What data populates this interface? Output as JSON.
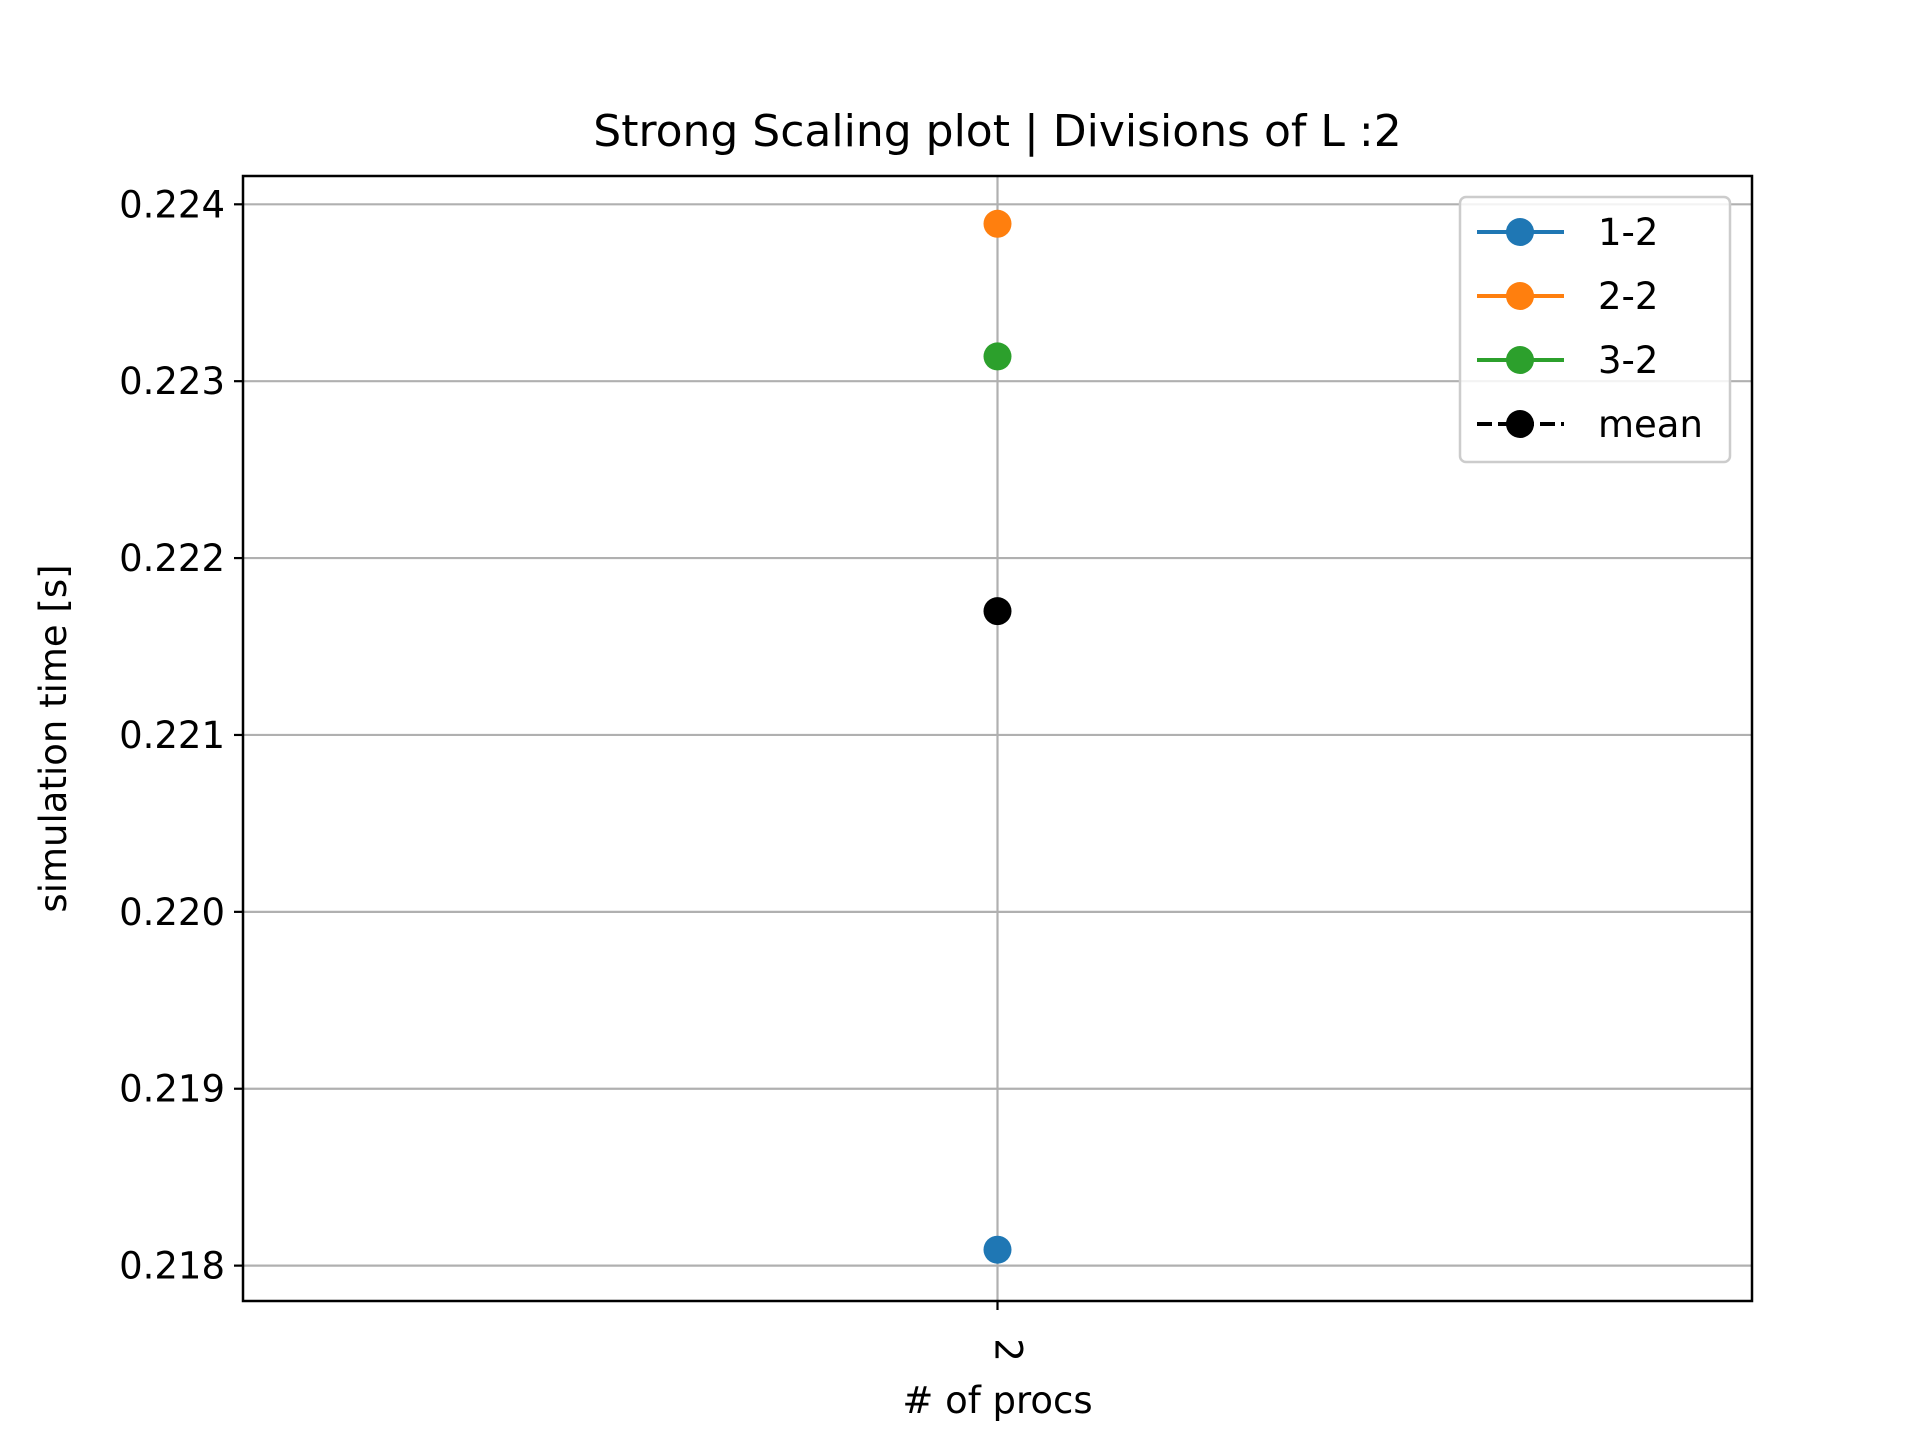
{
  "chart_data": {
    "type": "line",
    "title": "Strong Scaling plot | Divisions of L :2",
    "xlabel": "# of procs",
    "ylabel": "simulation time [s]",
    "x": [
      2
    ],
    "x_tick_labels": [
      "2"
    ],
    "ylim": [
      0.2178,
      0.22416
    ],
    "y_ticks": [
      0.218,
      0.219,
      0.22,
      0.221,
      0.222,
      0.223,
      0.224
    ],
    "y_tick_labels": [
      "0.218",
      "0.219",
      "0.220",
      "0.221",
      "0.222",
      "0.223",
      "0.224"
    ],
    "grid": true,
    "legend_position": "top-right",
    "series": [
      {
        "name": "1-2",
        "values": [
          0.21809
        ],
        "color": "#1f77b4",
        "style": "solid"
      },
      {
        "name": "2-2",
        "values": [
          0.22389
        ],
        "color": "#ff7f0e",
        "style": "solid"
      },
      {
        "name": "3-2",
        "values": [
          0.22314
        ],
        "color": "#2ca02c",
        "style": "solid"
      },
      {
        "name": "mean",
        "values": [
          0.2217
        ],
        "color": "#000000",
        "style": "dashed"
      }
    ]
  }
}
